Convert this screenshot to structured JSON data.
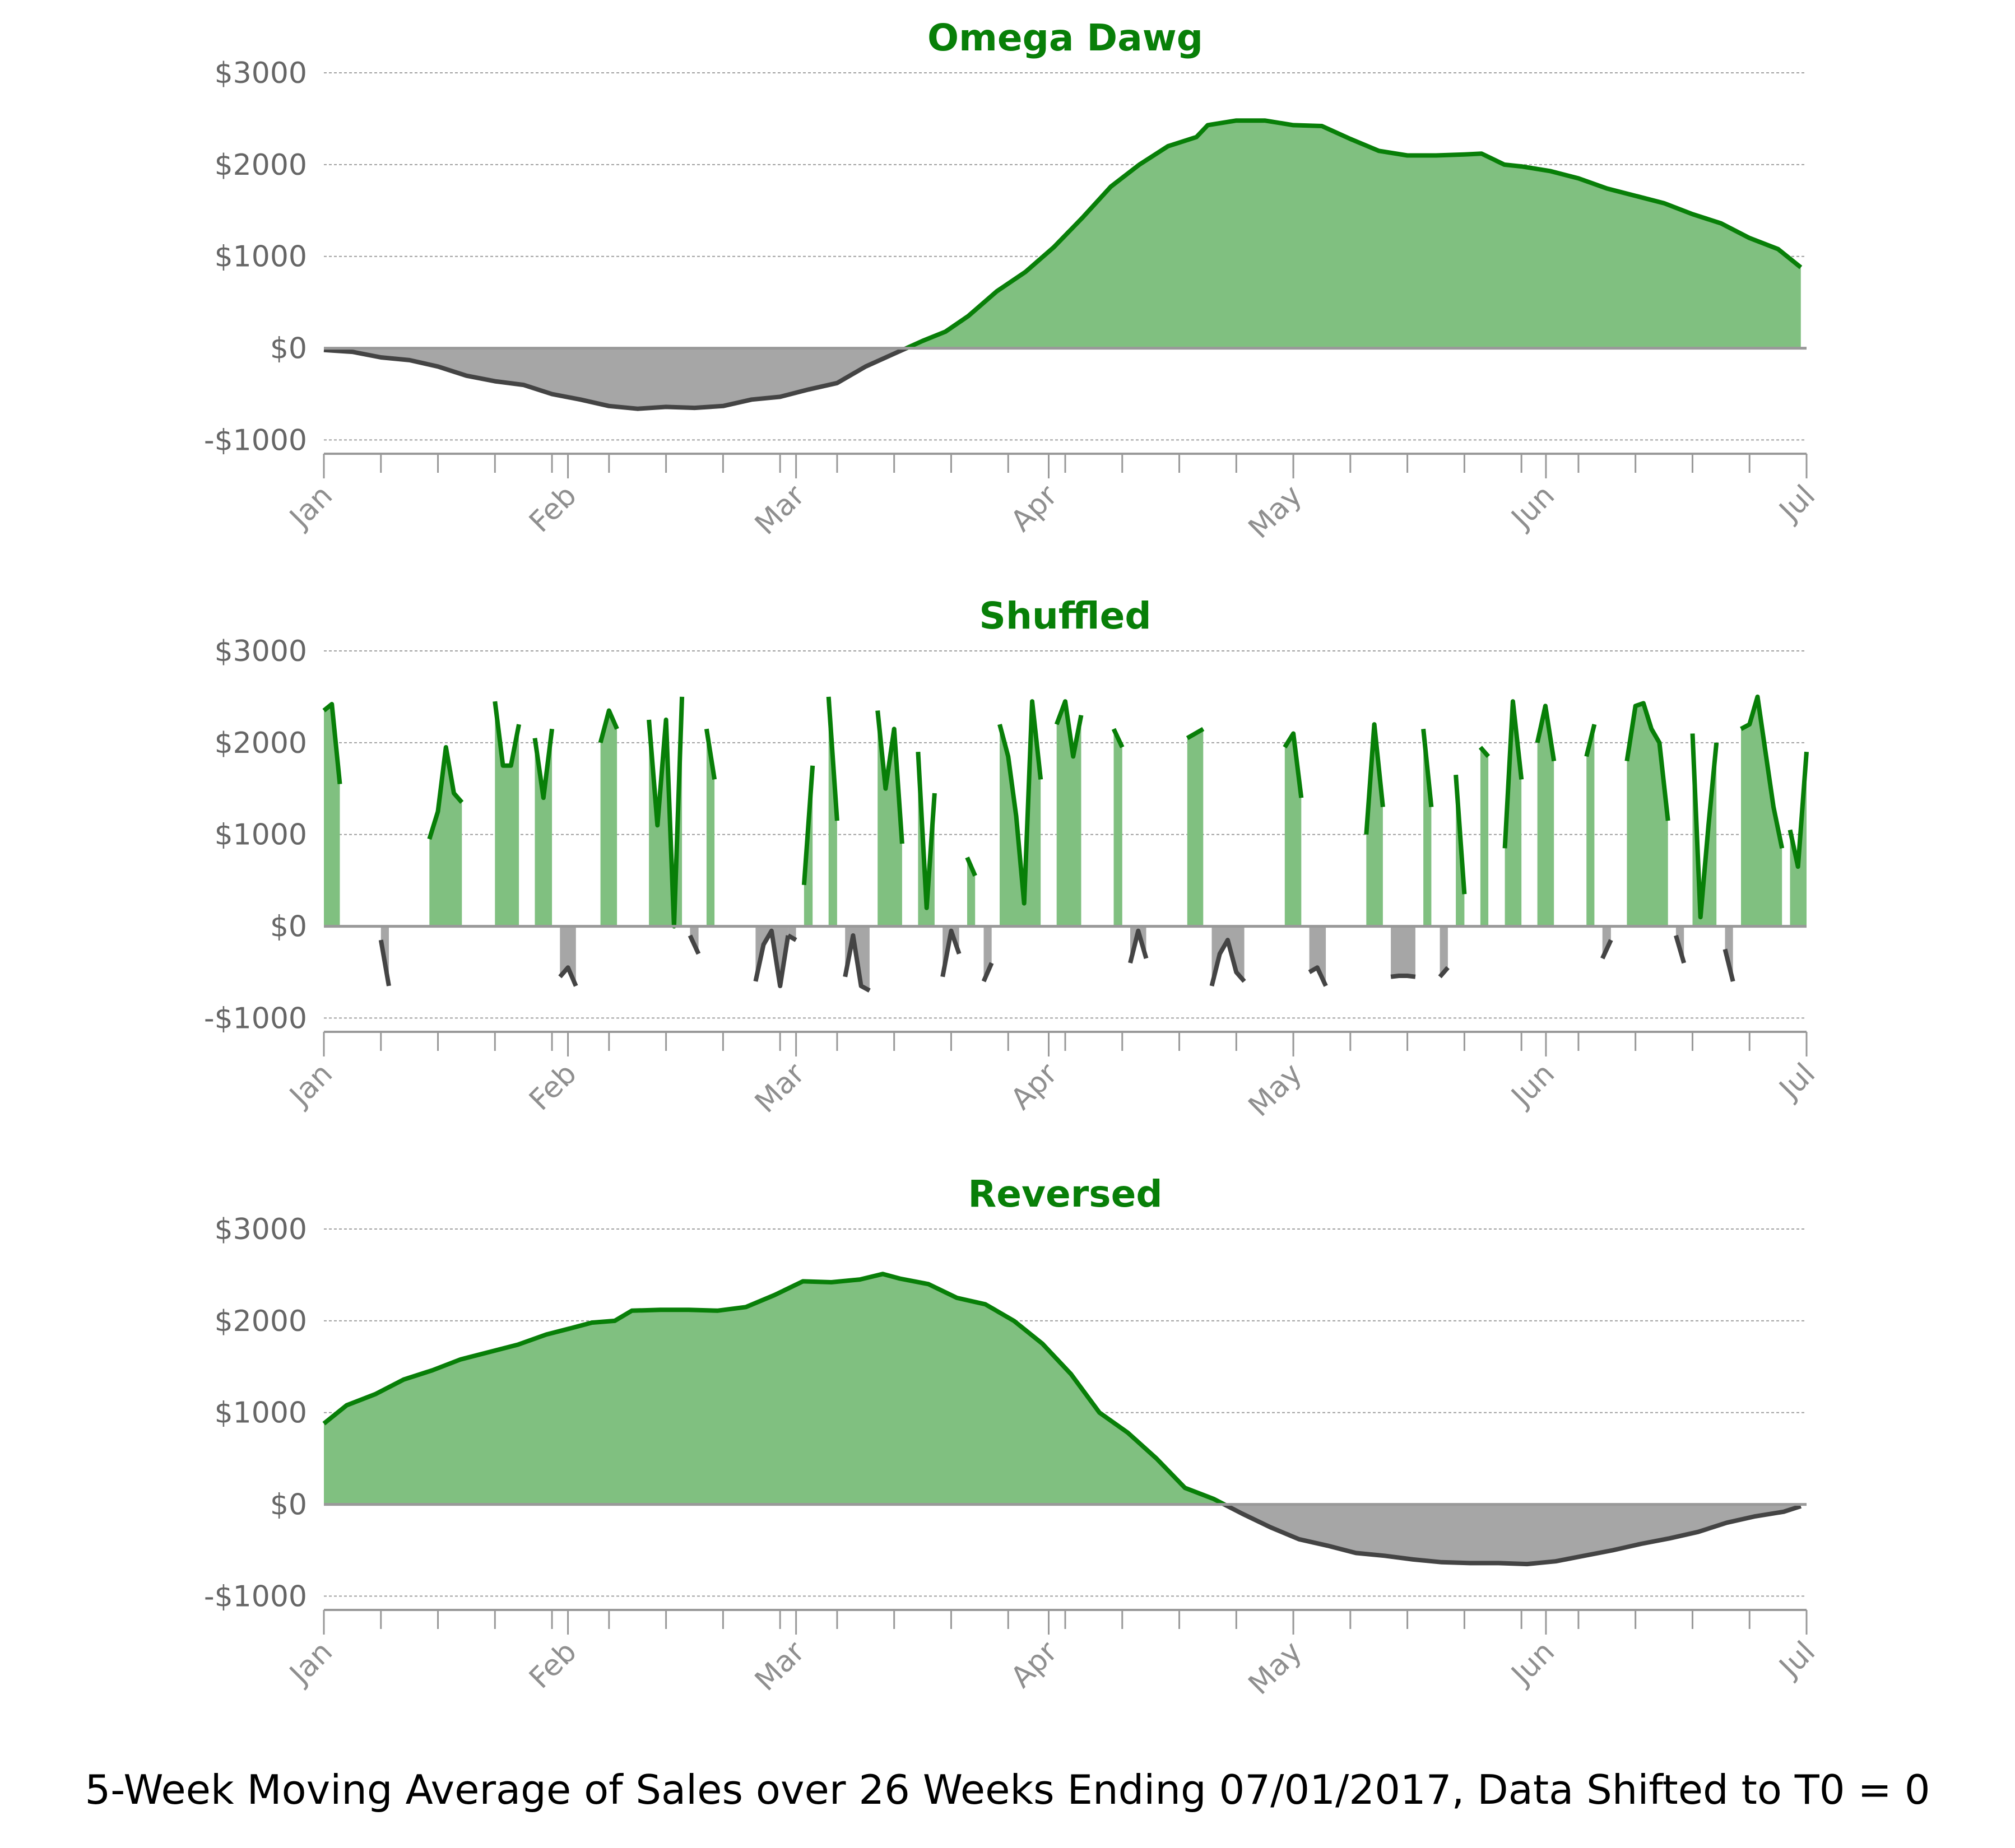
{
  "colors": {
    "positive_line": "#087f08",
    "positive_fill": "#80c080",
    "negative_line": "#444444",
    "negative_fill": "#a6a6a6",
    "axis": "#999999",
    "grid": "#888888",
    "title": "#087f08"
  },
  "caption": "5-Week Moving Average of Sales over 26 Weeks Ending 07/01/2017, Data Shifted to T0 = 0",
  "chart_data": [
    {
      "type": "area",
      "title": "Omega Dawg",
      "ylim": [
        -1150,
        3000
      ],
      "yticks": [
        -1000,
        0,
        1000,
        2000,
        3000
      ],
      "ytick_labels": [
        "-$1000",
        "$0",
        "$1000",
        "$2000",
        "$3000"
      ],
      "xlim": [
        0,
        26
      ],
      "xticks": [
        0,
        4.28,
        8.28,
        12.71,
        17,
        21.43,
        26
      ],
      "xtick_labels": [
        "Jan",
        "Feb",
        "Mar",
        "Apr",
        "May",
        "Jun",
        "Jul"
      ],
      "x_unit": "weeks",
      "grid": true,
      "series": [
        {
          "x": [
            0,
            0.5,
            1,
            1.5,
            2,
            2.5,
            3,
            3.5,
            4,
            4.5,
            5,
            5.5,
            6,
            6.5,
            7,
            7.5,
            8,
            8.5,
            9,
            9.5,
            10,
            10.5,
            10.9,
            11.3,
            11.8,
            12.3,
            12.8,
            13.3,
            13.8,
            14.3,
            14.8,
            15.3,
            15.5,
            16,
            16.5,
            17,
            17.5,
            18,
            18.5,
            19,
            19.5,
            20,
            20.3,
            20.7,
            21,
            21.5,
            22,
            22.5,
            23,
            23.5,
            24,
            24.5,
            25,
            25.5,
            25.9
          ],
          "y": [
            -20,
            -40,
            -100,
            -130,
            -200,
            -300,
            -360,
            -400,
            -500,
            -560,
            -630,
            -660,
            -640,
            -650,
            -630,
            -560,
            -530,
            -450,
            -380,
            -200,
            -60,
            80,
            180,
            350,
            620,
            830,
            1100,
            1420,
            1760,
            2000,
            2200,
            2300,
            2430,
            2480,
            2480,
            2430,
            2420,
            2280,
            2150,
            2100,
            2100,
            2110,
            2120,
            2000,
            1980,
            1930,
            1850,
            1740,
            1660,
            1580,
            1460,
            1360,
            1200,
            1080,
            880
          ]
        }
      ]
    },
    {
      "type": "area",
      "title": "Shuffled",
      "ylim": [
        -1150,
        3000
      ],
      "yticks": [
        -1000,
        0,
        1000,
        2000,
        3000
      ],
      "ytick_labels": [
        "-$1000",
        "$0",
        "$1000",
        "$2000",
        "$3000"
      ],
      "xlim": [
        0,
        26
      ],
      "xticks": [
        0,
        4.28,
        8.28,
        12.71,
        17,
        21.43,
        26
      ],
      "xtick_labels": [
        "Jan",
        "Feb",
        "Mar",
        "Apr",
        "May",
        "Jun",
        "Jul"
      ],
      "x_unit": "weeks",
      "grid": true,
      "series": [
        {
          "x": [
            0,
            0.14,
            0.28
          ],
          "y": [
            2350,
            2420,
            1550
          ]
        },
        {
          "x": [
            1.0,
            1.14
          ],
          "y": [
            -150,
            -650
          ]
        },
        {
          "x": [
            1.85,
            2.0,
            2.14,
            2.28,
            2.42
          ],
          "y": [
            950,
            1250,
            1950,
            1450,
            1350
          ]
        },
        {
          "x": [
            3.0,
            3.14,
            3.28,
            3.42
          ],
          "y": [
            2450,
            1750,
            1750,
            2200
          ]
        },
        {
          "x": [
            3.7,
            3.85,
            4.0
          ],
          "y": [
            2050,
            1400,
            2150
          ]
        },
        {
          "x": [
            4.14,
            4.28,
            4.42
          ],
          "y": [
            -550,
            -450,
            -650
          ]
        },
        {
          "x": [
            4.85,
            5.0,
            5.14
          ],
          "y": [
            2000,
            2350,
            2150
          ]
        },
        {
          "x": [
            5.7,
            5.85,
            6.0,
            6.14,
            6.28
          ],
          "y": [
            2250,
            1100,
            2250,
            0,
            2500
          ]
        },
        {
          "x": [
            6.42,
            6.57
          ],
          "y": [
            -100,
            -300
          ]
        },
        {
          "x": [
            6.71,
            6.85
          ],
          "y": [
            2150,
            1600
          ]
        },
        {
          "x": [
            7.57,
            7.71,
            7.85,
            8.0,
            8.14
          ],
          "y": [
            -600,
            -200,
            -50,
            -650,
            -100
          ]
        },
        {
          "x": [
            8.14,
            8.28
          ],
          "y": [
            -100,
            -150
          ]
        },
        {
          "x": [
            8.42,
            8.57
          ],
          "y": [
            450,
            1750
          ]
        },
        {
          "x": [
            8.85,
            9.0
          ],
          "y": [
            2500,
            1150
          ]
        },
        {
          "x": [
            9.14,
            9.28,
            9.42,
            9.57
          ],
          "y": [
            -550,
            -100,
            -650,
            -700
          ]
        },
        {
          "x": [
            9.71,
            9.85,
            10.0,
            10.14
          ],
          "y": [
            2350,
            1500,
            2150,
            900
          ]
        },
        {
          "x": [
            10.42,
            10.57,
            10.71
          ],
          "y": [
            1900,
            200,
            1450
          ]
        },
        {
          "x": [
            10.85,
            11.0,
            11.14
          ],
          "y": [
            -550,
            -50,
            -300
          ]
        },
        {
          "x": [
            11.28,
            11.42
          ],
          "y": [
            750,
            550
          ]
        },
        {
          "x": [
            11.57,
            11.71
          ],
          "y": [
            -600,
            -400
          ]
        },
        {
          "x": [
            11.85,
            12.0,
            12.14,
            12.28,
            12.42,
            12.57
          ],
          "y": [
            2200,
            1850,
            1200,
            250,
            2450,
            1600
          ]
        },
        {
          "x": [
            12.85,
            13.0,
            13.14,
            13.28
          ],
          "y": [
            2200,
            2450,
            1850,
            2300
          ]
        },
        {
          "x": [
            13.85,
            14.0
          ],
          "y": [
            2150,
            1950
          ]
        },
        {
          "x": [
            14.14,
            14.28,
            14.42
          ],
          "y": [
            -400,
            -50,
            -350
          ]
        },
        {
          "x": [
            15.14,
            15.42
          ],
          "y": [
            2050,
            2150
          ]
        },
        {
          "x": [
            15.57,
            15.71,
            15.85,
            16.0,
            16.14
          ],
          "y": [
            -650,
            -300,
            -150,
            -500,
            -600
          ]
        },
        {
          "x": [
            16.85,
            17.0,
            17.14
          ],
          "y": [
            1950,
            2100,
            1400
          ]
        },
        {
          "x": [
            17.28,
            17.42,
            17.57
          ],
          "y": [
            -500,
            -450,
            -650
          ]
        },
        {
          "x": [
            18.28,
            18.42,
            18.57
          ],
          "y": [
            1000,
            2200,
            1300
          ]
        },
        {
          "x": [
            18.71,
            18.85,
            19.0,
            19.14
          ],
          "y": [
            -550,
            -540,
            -540,
            -550
          ]
        },
        {
          "x": [
            19.28,
            19.42
          ],
          "y": [
            2150,
            1300
          ]
        },
        {
          "x": [
            19.57,
            19.71
          ],
          "y": [
            -550,
            -450
          ]
        },
        {
          "x": [
            19.85,
            20.0
          ],
          "y": [
            1650,
            350
          ]
        },
        {
          "x": [
            20.28,
            20.42
          ],
          "y": [
            1950,
            1850
          ]
        },
        {
          "x": [
            20.71,
            20.85,
            21.0
          ],
          "y": [
            850,
            2450,
            1600
          ]
        },
        {
          "x": [
            21.28,
            21.42,
            21.57
          ],
          "y": [
            2000,
            2400,
            1800
          ]
        },
        {
          "x": [
            22.14,
            22.28
          ],
          "y": [
            1850,
            2200
          ]
        },
        {
          "x": [
            22.42,
            22.57
          ],
          "y": [
            -350,
            -150
          ]
        },
        {
          "x": [
            22.85,
            23.0,
            23.14,
            23.28,
            23.42,
            23.57
          ],
          "y": [
            1800,
            2400,
            2430,
            2150,
            2000,
            1150
          ]
        },
        {
          "x": [
            23.71,
            23.85
          ],
          "y": [
            -100,
            -400
          ]
        },
        {
          "x": [
            24.0,
            24.14,
            24.28,
            24.42
          ],
          "y": [
            2100,
            100,
            1100,
            2000
          ]
        },
        {
          "x": [
            24.57,
            24.71
          ],
          "y": [
            -250,
            -600
          ]
        },
        {
          "x": [
            24.85,
            25.0,
            25.14,
            25.28,
            25.42,
            25.57
          ],
          "y": [
            2150,
            2200,
            2500,
            1900,
            1300,
            850
          ]
        },
        {
          "x": [
            25.71,
            25.85,
            26.0
          ],
          "y": [
            1050,
            650,
            1900
          ]
        }
      ]
    },
    {
      "type": "area",
      "title": "Reversed",
      "ylim": [
        -1150,
        3000
      ],
      "yticks": [
        -1000,
        0,
        1000,
        2000,
        3000
      ],
      "ytick_labels": [
        "-$1000",
        "$0",
        "$1000",
        "$2000",
        "$3000"
      ],
      "xlim": [
        0,
        26
      ],
      "xticks": [
        0,
        4.28,
        8.28,
        12.71,
        17,
        21.43,
        26
      ],
      "xtick_labels": [
        "Jan",
        "Feb",
        "Mar",
        "Apr",
        "May",
        "Jun",
        "Jul"
      ],
      "x_unit": "weeks",
      "grid": true,
      "series": [
        {
          "x": [
            0,
            0.4,
            0.9,
            1.4,
            1.9,
            2.4,
            2.9,
            3.4,
            3.9,
            4.4,
            4.7,
            5.1,
            5.4,
            5.9,
            6.4,
            6.9,
            7.4,
            7.9,
            8.4,
            8.9,
            9.4,
            9.8,
            10.1,
            10.6,
            11.1,
            11.6,
            12.1,
            12.6,
            13.1,
            13.6,
            14.1,
            14.6,
            15.1,
            15.6,
            16.1,
            16.6,
            17.1,
            17.6,
            18.1,
            18.6,
            19.1,
            19.6,
            20.1,
            20.6,
            21.1,
            21.6,
            22.1,
            22.6,
            23.1,
            23.6,
            24.1,
            24.6,
            25.1,
            25.6,
            25.9
          ],
          "y": [
            880,
            1080,
            1200,
            1360,
            1460,
            1580,
            1660,
            1740,
            1850,
            1930,
            1980,
            2000,
            2110,
            2120,
            2120,
            2110,
            2150,
            2280,
            2430,
            2420,
            2450,
            2510,
            2460,
            2400,
            2250,
            2180,
            2000,
            1750,
            1420,
            1000,
            780,
            500,
            180,
            60,
            -100,
            -250,
            -380,
            -450,
            -530,
            -560,
            -600,
            -630,
            -640,
            -640,
            -650,
            -620,
            -560,
            -500,
            -430,
            -370,
            -300,
            -200,
            -130,
            -80,
            -20
          ]
        }
      ]
    }
  ]
}
